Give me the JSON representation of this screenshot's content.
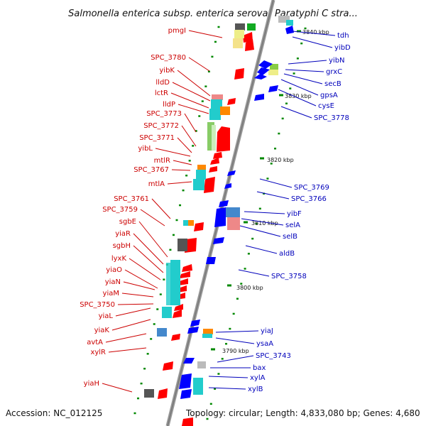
{
  "title": "Salmonella enterica subsp. enterica serovar Paratyphi C stra...",
  "footer": {
    "accession": "Accession: NC_012125",
    "topology": "Topology: circular; Length: 4,833,080 bp; Genes: 4,680"
  },
  "colors": {
    "forward_label": "#cc0000",
    "reverse_label": "#0000bb",
    "forward_gene": "#ff0000",
    "reverse_gene": "#0000ff",
    "backbone": "#888888",
    "tick": "#008800"
  },
  "kbp_ticks": [
    "3840 kbp",
    "3830 kbp",
    "3820 kbp",
    "3810 kbp",
    "3800 kbp",
    "3790 kbp"
  ],
  "left_labels": [
    "pmgI",
    "SPC_3780",
    "yibK",
    "lldD",
    "lctR",
    "lldP",
    "SPC_3773",
    "SPC_3772",
    "SPC_3771",
    "yibL",
    "mtlR",
    "SPC_3767",
    "mtlA",
    "SPC_3761",
    "SPC_3759",
    "sgbE",
    "yiaR",
    "sgbH",
    "lyxK",
    "yiaO",
    "yiaN",
    "yiaM",
    "SPC_3750",
    "yiaL",
    "yiaK",
    "avtA",
    "xylR",
    "yiaH"
  ],
  "right_labels": [
    "tdh",
    "yibD",
    "yibN",
    "grxC",
    "secB",
    "gpsA",
    "cysE",
    "SPC_3778",
    "SPC_3769",
    "SPC_3766",
    "yibF",
    "selA",
    "selB",
    "aldB",
    "SPC_3758",
    "yiaJ",
    "ysaA",
    "SPC_3743",
    "bax",
    "xylA",
    "xylB"
  ]
}
